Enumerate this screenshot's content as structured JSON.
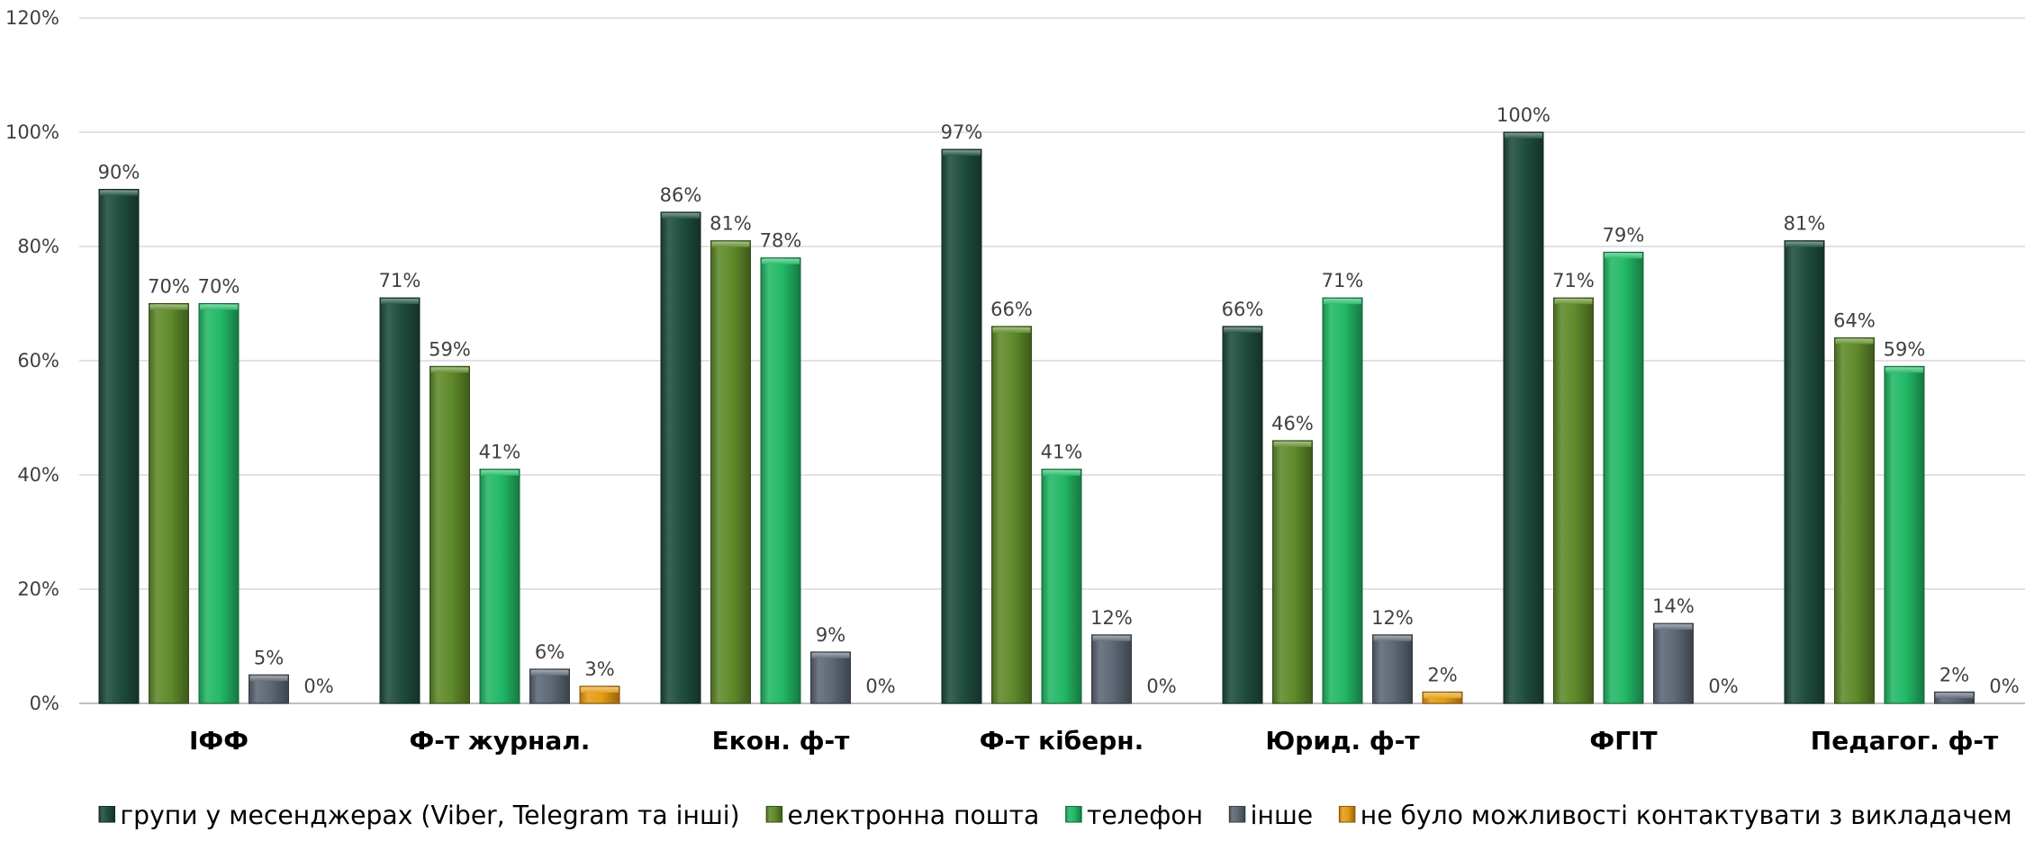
{
  "chart_data": {
    "type": "bar",
    "categories": [
      "ІФФ",
      "Ф-т журнал.",
      "Екон. ф-т",
      "Ф-т кіберн.",
      "Юрид. ф-т",
      "ФГІТ",
      "Педагог. ф-т"
    ],
    "series": [
      {
        "name": "групи у месенджерах (Viber, Telegram та інші)",
        "color": "#1e4d3e",
        "values": [
          90,
          71,
          86,
          97,
          66,
          100,
          81
        ]
      },
      {
        "name": "електронна пошта",
        "color": "#5f8a2a",
        "values": [
          70,
          59,
          81,
          66,
          46,
          71,
          64
        ]
      },
      {
        "name": "телефон",
        "color": "#22b866",
        "values": [
          70,
          41,
          78,
          41,
          71,
          79,
          59
        ]
      },
      {
        "name": "інше",
        "color": "#5d6775",
        "values": [
          5,
          6,
          9,
          12,
          12,
          14,
          2
        ]
      },
      {
        "name": "не було можливості контактувати з викладачем",
        "color": "#e69c14",
        "values": [
          0,
          3,
          0,
          0,
          2,
          0,
          0
        ]
      }
    ],
    "value_format": "percent",
    "ylim": [
      0,
      120
    ],
    "yticks": [
      0,
      20,
      40,
      60,
      80,
      100,
      120
    ],
    "ytick_labels": [
      "0%",
      "20%",
      "40%",
      "60%",
      "80%",
      "100%",
      "120%"
    ],
    "grid": true,
    "legend": "bottom",
    "title": "",
    "xlabel": "",
    "ylabel": ""
  }
}
